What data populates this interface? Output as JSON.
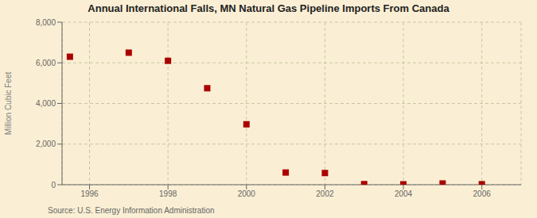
{
  "chart_data": {
    "type": "scatter",
    "title": "Annual International Falls, MN Natural Gas Pipeline Imports From Canada",
    "ylabel": "Million Cubic Feet",
    "source": "Source: U.S. Energy Information Administration",
    "x": [
      1995.5,
      1997,
      1998,
      1999,
      2000,
      2001,
      2002,
      2003,
      2004,
      2005,
      2006
    ],
    "values": [
      6300,
      6500,
      6100,
      4750,
      2975,
      600,
      575,
      30,
      20,
      60,
      25
    ],
    "xlim": [
      1995.3,
      2007
    ],
    "ylim": [
      0,
      8000
    ],
    "xticks": [
      1996,
      1998,
      2000,
      2002,
      2004,
      2006
    ],
    "yticks": [
      0,
      {
        "value": 2000,
        "label": "2,000"
      },
      {
        "value": 4000,
        "label": "4,000"
      },
      {
        "value": 6000,
        "label": "6,000"
      },
      {
        "value": 8000,
        "label": "8,000"
      }
    ],
    "color": "#aa0000",
    "marker": "square",
    "grid": true
  }
}
